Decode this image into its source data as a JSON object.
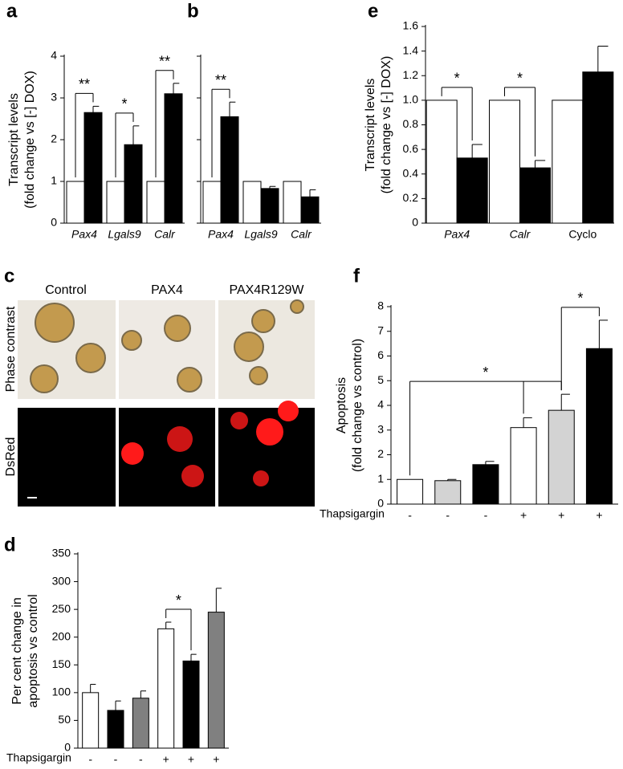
{
  "chart_data": [
    {
      "panel": "a",
      "type": "bar",
      "y_label": [
        "Transcript levels",
        "(fold change vs [-] DOX)"
      ],
      "categories": [
        "Pax4",
        "Lgals9",
        "Calr"
      ],
      "series": [
        {
          "color": "#ffffff",
          "values": [
            1,
            1,
            1
          ]
        },
        {
          "color": "#000000",
          "values": [
            2.65,
            1.88,
            3.1
          ],
          "errors": [
            0.15,
            0.45,
            0.25
          ]
        }
      ],
      "ylim": [
        0,
        4
      ],
      "yticks": [
        0,
        1,
        2,
        3,
        4
      ],
      "brackets": [
        {
          "label": "**",
          "bars": [
            0,
            1
          ]
        },
        {
          "label": "*",
          "bars": [
            2,
            3
          ]
        },
        {
          "label": "**",
          "bars": [
            4,
            5
          ]
        }
      ]
    },
    {
      "panel": "b",
      "type": "bar",
      "categories": [
        "Pax4",
        "Lgals9",
        "Calr"
      ],
      "series": [
        {
          "color": "#ffffff",
          "values": [
            1,
            1,
            1
          ]
        },
        {
          "color": "#000000",
          "values": [
            2.55,
            0.83,
            0.63
          ],
          "errors": [
            0.35,
            0.05,
            0.17
          ]
        }
      ],
      "ylim": [
        0,
        4
      ],
      "yticks": [
        0,
        1,
        2,
        3,
        4
      ],
      "brackets": [
        {
          "label": "**",
          "bars": [
            0,
            1
          ]
        }
      ]
    },
    {
      "panel": "e",
      "type": "bar",
      "y_label": [
        "Transcript levels",
        "(fold change vs [-] DOX)"
      ],
      "categories": [
        "Pax4",
        "Calr",
        "Cyclo"
      ],
      "series": [
        {
          "color": "#ffffff",
          "values": [
            1,
            1,
            1
          ]
        },
        {
          "color": "#000000",
          "values": [
            0.53,
            0.45,
            1.23
          ],
          "errors": [
            0.11,
            0.06,
            0.21
          ]
        }
      ],
      "ylim": [
        0,
        1.6
      ],
      "yticks": [
        0,
        0.2,
        0.4,
        0.6,
        0.8,
        {
          "value": 1,
          "label": "1.0"
        },
        1.2,
        1.4,
        1.6
      ],
      "brackets": [
        {
          "label": "*",
          "bars": [
            0,
            1
          ]
        },
        {
          "label": "*",
          "bars": [
            2,
            3
          ]
        }
      ]
    },
    {
      "panel": "d",
      "type": "bar",
      "y_label": [
        "Per cent change in",
        "apoptosis vs control"
      ],
      "x_label": "Thapsigargin",
      "categories": [
        "-",
        "-",
        "-",
        "+",
        "+",
        "+"
      ],
      "values": [
        100,
        68,
        90,
        215,
        157,
        245
      ],
      "errors": [
        15,
        17,
        13,
        12,
        12,
        43
      ],
      "colors": [
        "#ffffff",
        "#000000",
        "#808080",
        "#ffffff",
        "#000000",
        "#808080"
      ],
      "ylim": [
        0,
        350
      ],
      "yticks": [
        0,
        50,
        100,
        150,
        200,
        250,
        300,
        350
      ],
      "brackets": [
        {
          "label": "*",
          "bars": [
            3,
            4
          ]
        }
      ]
    },
    {
      "panel": "f",
      "type": "bar",
      "y_label": [
        "Apoptosis",
        "(fold change vs control)"
      ],
      "x_label": "Thapsigargin",
      "categories": [
        "-",
        "-",
        "-",
        "+",
        "+",
        "+"
      ],
      "values": [
        1,
        0.95,
        1.6,
        3.1,
        3.8,
        6.3
      ],
      "errors": [
        null,
        0.05,
        0.13,
        0.4,
        0.65,
        1.15
      ],
      "colors": [
        "#ffffff",
        "#d3d3d3",
        "#000000",
        "#ffffff",
        "#d3d3d3",
        "#000000"
      ],
      "ylim": [
        0,
        8
      ],
      "yticks": [
        0,
        1,
        2,
        3,
        4,
        5,
        6,
        7,
        8
      ],
      "brackets": [
        {
          "label": "*",
          "bars": [
            0,
            3,
            4
          ]
        },
        {
          "label": "*",
          "bars": [
            4,
            5
          ]
        }
      ]
    }
  ],
  "figure_c": {
    "panel": "c",
    "columns": [
      "Control",
      "PAX4",
      "PAX4R129W"
    ],
    "rows": [
      "Phase contrast",
      "DsRed"
    ]
  }
}
